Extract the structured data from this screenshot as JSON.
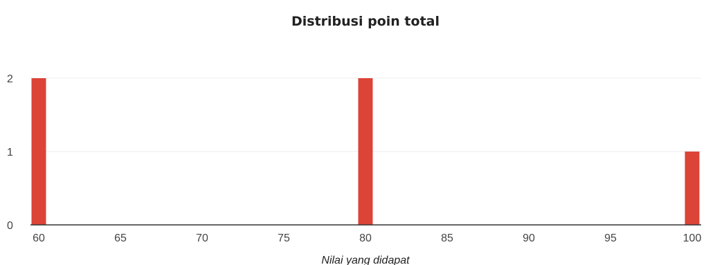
{
  "chart_data": {
    "type": "bar",
    "title": "Distribusi poin total",
    "xlabel": "Nilai yang didapat",
    "ylabel": "",
    "x_ticks": [
      60,
      65,
      70,
      75,
      80,
      85,
      90,
      95,
      100
    ],
    "y_ticks": [
      0,
      1,
      2
    ],
    "xlim": [
      60,
      100
    ],
    "ylim": [
      0,
      2
    ],
    "grid": true,
    "legend": "none",
    "bar_color": "#DB4437",
    "series": [
      {
        "values": [
          {
            "x": 60,
            "y": 2
          },
          {
            "x": 80,
            "y": 2
          },
          {
            "x": 100,
            "y": 1
          }
        ]
      }
    ]
  }
}
